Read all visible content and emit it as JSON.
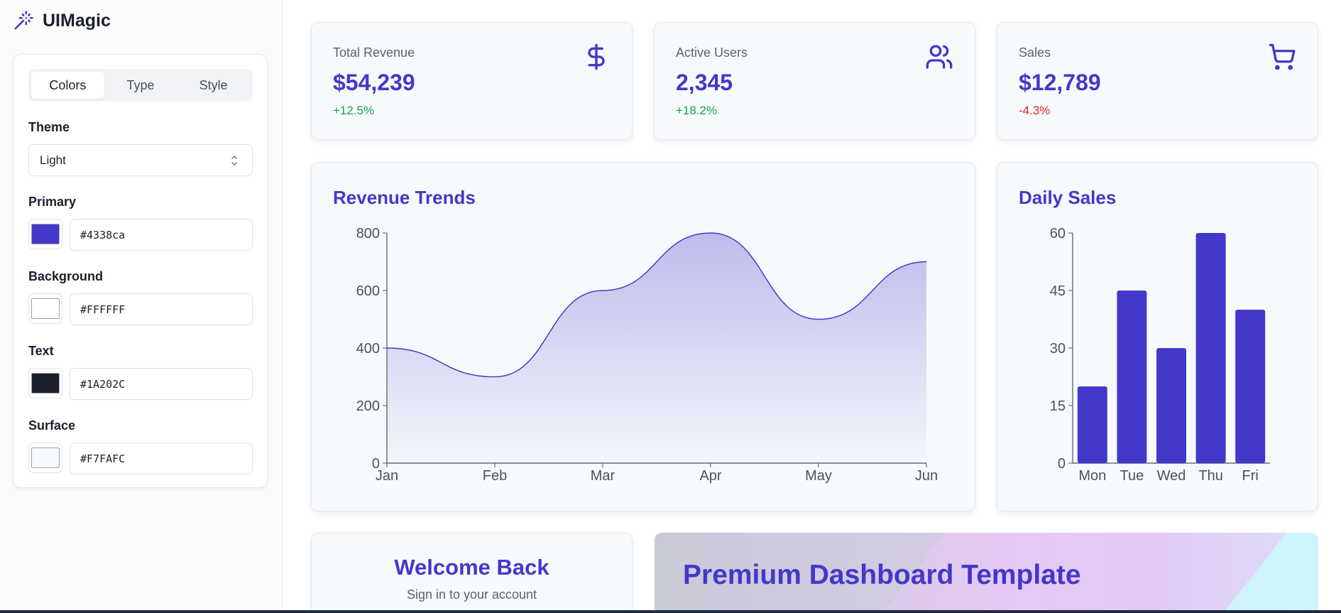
{
  "app": {
    "name": "UIMagic",
    "logo_icon": "magic-wand-icon"
  },
  "sidebar": {
    "tabs": [
      {
        "label": "Colors",
        "active": true
      },
      {
        "label": "Type",
        "active": false
      },
      {
        "label": "Style",
        "active": false
      }
    ],
    "theme": {
      "label": "Theme",
      "value": "Light"
    },
    "colors": [
      {
        "label": "Primary",
        "value": "#4338ca",
        "swatch": "#4338ca"
      },
      {
        "label": "Background",
        "value": "#FFFFFF",
        "swatch": "#FFFFFF"
      },
      {
        "label": "Text",
        "value": "#1A202C",
        "swatch": "#1A202C"
      },
      {
        "label": "Surface",
        "value": "#F7FAFC",
        "swatch": "#F7FAFC"
      }
    ]
  },
  "stats": [
    {
      "label": "Total Revenue",
      "value": "$54,239",
      "change": "+12.5%",
      "trend": "up",
      "icon": "dollar-icon"
    },
    {
      "label": "Active Users",
      "value": "2,345",
      "change": "+18.2%",
      "trend": "up",
      "icon": "users-icon"
    },
    {
      "label": "Sales",
      "value": "$12,789",
      "change": "-4.3%",
      "trend": "down",
      "icon": "cart-icon"
    }
  ],
  "colors": {
    "accent": "#4338ca",
    "positive": "#16a34a",
    "negative": "#dc2626"
  },
  "chart_data": [
    {
      "type": "area",
      "title": "Revenue Trends",
      "x": [
        "Jan",
        "Feb",
        "Mar",
        "Apr",
        "May",
        "Jun"
      ],
      "y": [
        400,
        300,
        600,
        800,
        500,
        700
      ],
      "ylim": [
        0,
        800
      ],
      "yticks": [
        0,
        200,
        400,
        600,
        800
      ],
      "grid": false
    },
    {
      "type": "bar",
      "title": "Daily Sales",
      "categories": [
        "Mon",
        "Tue",
        "Wed",
        "Thu",
        "Fri"
      ],
      "values": [
        20,
        45,
        30,
        60,
        40
      ],
      "ylim": [
        0,
        60
      ],
      "yticks": [
        0,
        15,
        30,
        45,
        60
      ],
      "grid": false
    }
  ],
  "welcome": {
    "title": "Welcome Back",
    "subtitle": "Sign in to your account"
  },
  "promo": {
    "title": "Premium Dashboard Template"
  }
}
